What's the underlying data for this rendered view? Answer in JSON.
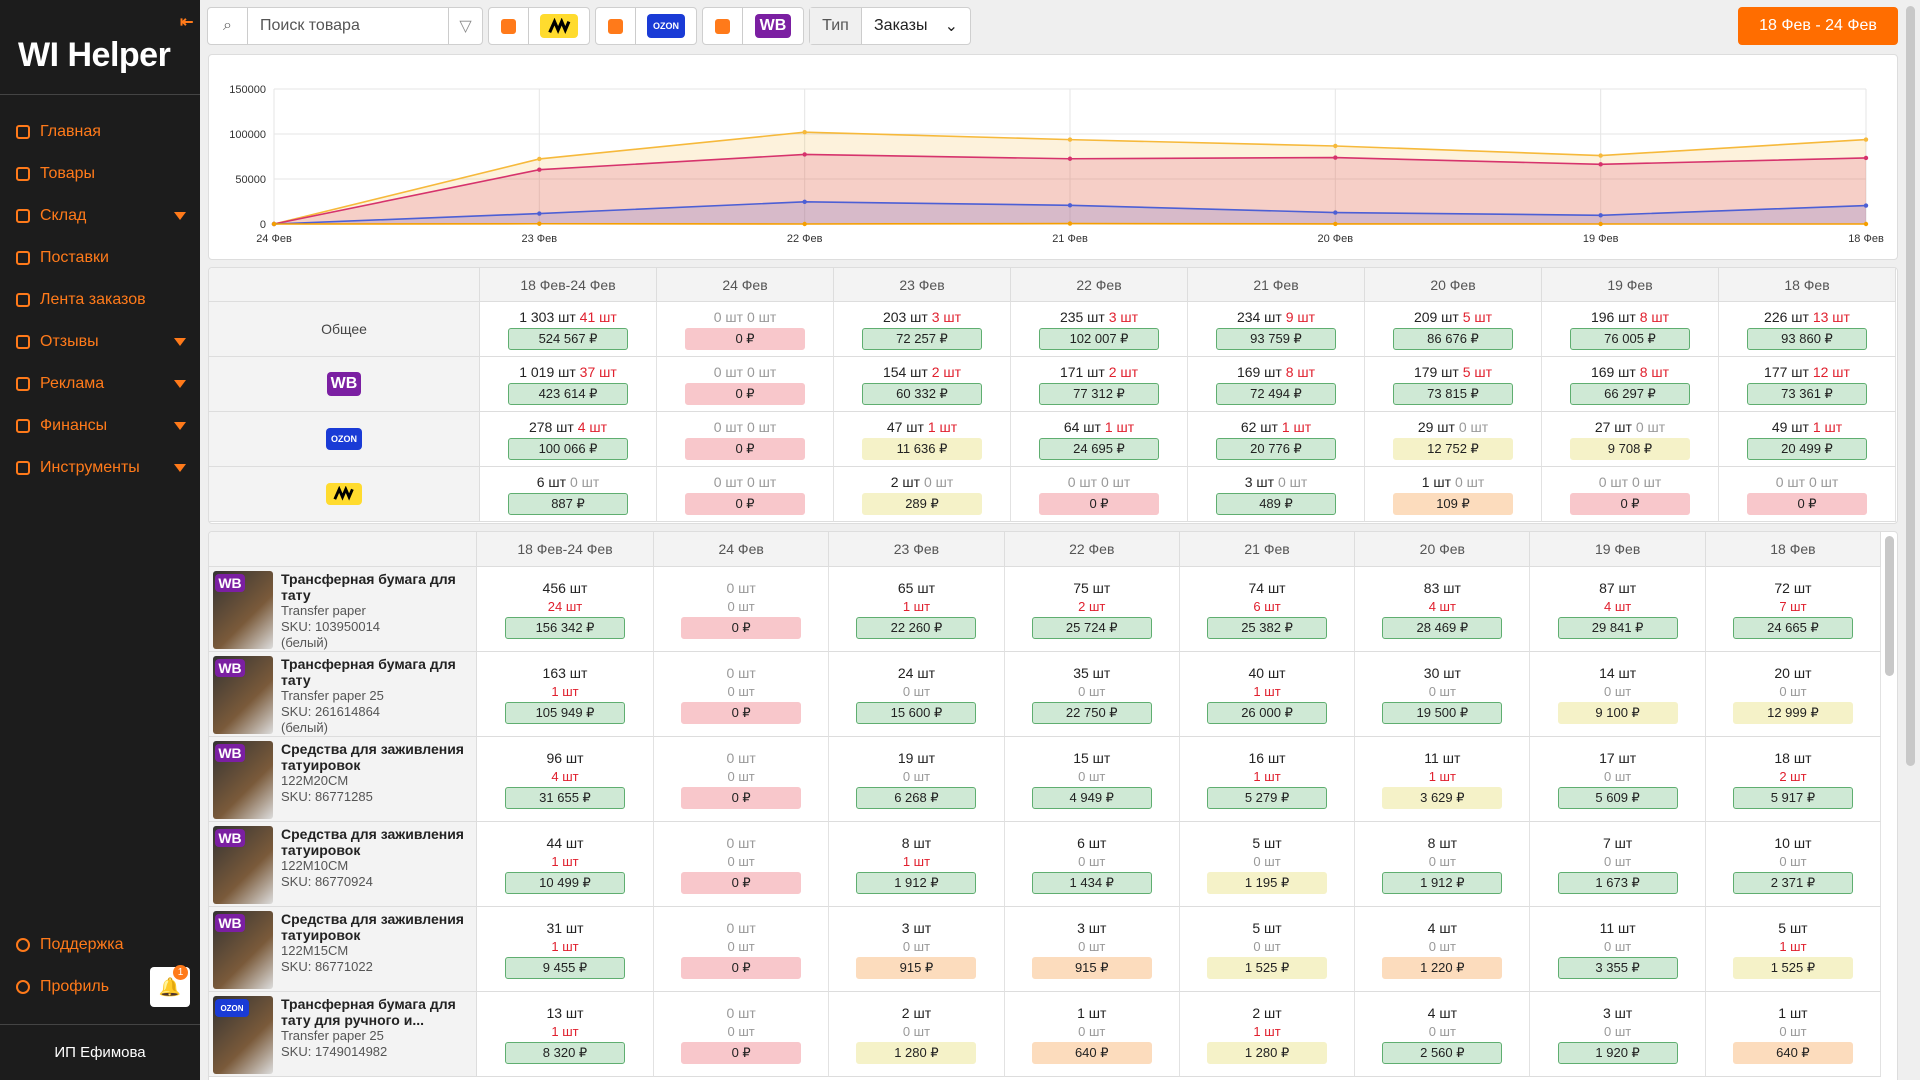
{
  "sidebar": {
    "logo": "WI Helper",
    "menu": [
      {
        "label": "Главная",
        "dropdown": false
      },
      {
        "label": "Товары",
        "dropdown": false
      },
      {
        "label": "Склад",
        "dropdown": true
      },
      {
        "label": "Поставки",
        "dropdown": false
      },
      {
        "label": "Лента заказов",
        "dropdown": false
      },
      {
        "label": "Отзывы",
        "dropdown": true
      },
      {
        "label": "Реклама",
        "dropdown": true
      },
      {
        "label": "Финансы",
        "dropdown": true
      },
      {
        "label": "Инструменты",
        "dropdown": true
      }
    ],
    "support": "Поддержка",
    "profile": "Профиль",
    "notifications": "1",
    "account": "ИП Ефимова"
  },
  "toolbar": {
    "search_placeholder": "Поиск товара",
    "marketplaces": [
      {
        "market": "ya",
        "checked": true
      },
      {
        "market": "ozon",
        "badge": "OZON",
        "checked": true
      },
      {
        "market": "wb",
        "badge": "WB",
        "checked": true
      }
    ],
    "type_label": "Тип",
    "type_value": "Заказы",
    "date_range": "18 Фев - 24 Фев"
  },
  "chart_data": {
    "type": "area",
    "categories": [
      "24 Фев",
      "23 Фев",
      "22 Фев",
      "21 Фев",
      "20 Фев",
      "19 Фев",
      "18 Фев"
    ],
    "series": [
      {
        "color": "#f6b93b",
        "values": [
          0,
          72257,
          102007,
          93759,
          86676,
          76005,
          93860
        ]
      },
      {
        "color": "#d6336c",
        "values": [
          0,
          60332,
          77312,
          72494,
          73815,
          66297,
          73361
        ]
      },
      {
        "color": "#4c5fd5",
        "values": [
          0,
          11636,
          24695,
          20776,
          12752,
          9708,
          20499
        ]
      },
      {
        "color": "#f59f00",
        "values": [
          0,
          289,
          0,
          489,
          109,
          0,
          0
        ]
      }
    ],
    "ylim": [
      0,
      150000
    ],
    "yticks": [
      0,
      50000,
      100000,
      150000
    ],
    "grid": true
  },
  "summary": {
    "headers": [
      "18 Фев-24 Фев",
      "24 Фев",
      "23 Фев",
      "22 Фев",
      "21 Фев",
      "20 Фев",
      "19 Фев",
      "18 Фев"
    ],
    "rows": [
      {
        "label": "Общее",
        "cells": [
          [
            "1 303 шт",
            "41 шт",
            "524 567 ₽",
            "g"
          ],
          [
            "0 шт",
            "0 шт",
            "0 ₽",
            "r"
          ],
          [
            "203 шт",
            "3 шт",
            "72 257 ₽",
            "g"
          ],
          [
            "235 шт",
            "3 шт",
            "102 007 ₽",
            "g"
          ],
          [
            "234 шт",
            "9 шт",
            "93 759 ₽",
            "g"
          ],
          [
            "209 шт",
            "5 шт",
            "86 676 ₽",
            "g"
          ],
          [
            "196 шт",
            "8 шт",
            "76 005 ₽",
            "g"
          ],
          [
            "226 шт",
            "13 шт",
            "93 860 ₽",
            "g"
          ]
        ]
      },
      {
        "market": "wb",
        "badge": "WB",
        "cells": [
          [
            "1 019 шт",
            "37 шт",
            "423 614 ₽",
            "g"
          ],
          [
            "0 шт",
            "0 шт",
            "0 ₽",
            "r"
          ],
          [
            "154 шт",
            "2 шт",
            "60 332 ₽",
            "g"
          ],
          [
            "171 шт",
            "2 шт",
            "77 312 ₽",
            "g"
          ],
          [
            "169 шт",
            "8 шт",
            "72 494 ₽",
            "g"
          ],
          [
            "179 шт",
            "5 шт",
            "73 815 ₽",
            "g"
          ],
          [
            "169 шт",
            "8 шт",
            "66 297 ₽",
            "g"
          ],
          [
            "177 шт",
            "12 шт",
            "73 361 ₽",
            "g"
          ]
        ]
      },
      {
        "market": "ozon",
        "badge": "OZON",
        "cells": [
          [
            "278 шт",
            "4 шт",
            "100 066 ₽",
            "g"
          ],
          [
            "0 шт",
            "0 шт",
            "0 ₽",
            "r"
          ],
          [
            "47 шт",
            "1 шт",
            "11 636 ₽",
            "y"
          ],
          [
            "64 шт",
            "1 шт",
            "24 695 ₽",
            "g"
          ],
          [
            "62 шт",
            "1 шт",
            "20 776 ₽",
            "g"
          ],
          [
            "29 шт",
            "0 шт",
            "12 752 ₽",
            "y"
          ],
          [
            "27 шт",
            "0 шт",
            "9 708 ₽",
            "y"
          ],
          [
            "49 шт",
            "1 шт",
            "20 499 ₽",
            "g"
          ]
        ]
      },
      {
        "market": "ya",
        "cells": [
          [
            "6 шт",
            "0 шт",
            "887 ₽",
            "g"
          ],
          [
            "0 шт",
            "0 шт",
            "0 ₽",
            "r"
          ],
          [
            "2 шт",
            "0 шт",
            "289 ₽",
            "y"
          ],
          [
            "0 шт",
            "0 шт",
            "0 ₽",
            "r"
          ],
          [
            "3 шт",
            "0 шт",
            "489 ₽",
            "g"
          ],
          [
            "1 шт",
            "0 шт",
            "109 ₽",
            "o"
          ],
          [
            "0 шт",
            "0 шт",
            "0 ₽",
            "r"
          ],
          [
            "0 шт",
            "0 шт",
            "0 ₽",
            "r"
          ]
        ]
      }
    ]
  },
  "products": {
    "headers": [
      "18 Фев-24 Фев",
      "24 Фев",
      "23 Фев",
      "22 Фев",
      "21 Фев",
      "20 Фев",
      "19 Фев",
      "18 Фев"
    ],
    "rows": [
      {
        "market": "wb",
        "badge": "WB",
        "name": "Трансферная бумага для тату",
        "variant": "Transfer paper",
        "sku": "SKU: 103950014",
        "color": "(белый)",
        "cells": [
          [
            "456 шт",
            "24 шт",
            "156 342 ₽",
            "g"
          ],
          [
            "0 шт",
            "0 шт",
            "0 ₽",
            "r"
          ],
          [
            "65 шт",
            "1 шт",
            "22 260 ₽",
            "g"
          ],
          [
            "75 шт",
            "2 шт",
            "25 724 ₽",
            "g"
          ],
          [
            "74 шт",
            "6 шт",
            "25 382 ₽",
            "g"
          ],
          [
            "83 шт",
            "4 шт",
            "28 469 ₽",
            "g"
          ],
          [
            "87 шт",
            "4 шт",
            "29 841 ₽",
            "g"
          ],
          [
            "72 шт",
            "7 шт",
            "24 665 ₽",
            "g"
          ]
        ]
      },
      {
        "market": "wb",
        "badge": "WB",
        "name": "Трансферная бумага для тату",
        "variant": "Transfer paper 25",
        "sku": "SKU: 261614864",
        "color": "(белый)",
        "cells": [
          [
            "163 шт",
            "1 шт",
            "105 949 ₽",
            "g"
          ],
          [
            "0 шт",
            "0 шт",
            "0 ₽",
            "r"
          ],
          [
            "24 шт",
            "0 шт",
            "15 600 ₽",
            "g"
          ],
          [
            "35 шт",
            "0 шт",
            "22 750 ₽",
            "g"
          ],
          [
            "40 шт",
            "1 шт",
            "26 000 ₽",
            "g"
          ],
          [
            "30 шт",
            "0 шт",
            "19 500 ₽",
            "g"
          ],
          [
            "14 шт",
            "0 шт",
            "9 100 ₽",
            "y"
          ],
          [
            "20 шт",
            "0 шт",
            "12 999 ₽",
            "y"
          ]
        ]
      },
      {
        "market": "wb",
        "badge": "WB",
        "name": "Средства для заживления татуировок",
        "variant": "122M20CM",
        "sku": "SKU: 86771285",
        "cells": [
          [
            "96 шт",
            "4 шт",
            "31 655 ₽",
            "g"
          ],
          [
            "0 шт",
            "0 шт",
            "0 ₽",
            "r"
          ],
          [
            "19 шт",
            "0 шт",
            "6 268 ₽",
            "g"
          ],
          [
            "15 шт",
            "0 шт",
            "4 949 ₽",
            "g"
          ],
          [
            "16 шт",
            "1 шт",
            "5 279 ₽",
            "g"
          ],
          [
            "11 шт",
            "1 шт",
            "3 629 ₽",
            "y"
          ],
          [
            "17 шт",
            "0 шт",
            "5 609 ₽",
            "g"
          ],
          [
            "18 шт",
            "2 шт",
            "5 917 ₽",
            "g"
          ]
        ]
      },
      {
        "market": "wb",
        "badge": "WB",
        "name": "Средства для заживления татуировок",
        "variant": "122M10CM",
        "sku": "SKU: 86770924",
        "cells": [
          [
            "44 шт",
            "1 шт",
            "10 499 ₽",
            "g"
          ],
          [
            "0 шт",
            "0 шт",
            "0 ₽",
            "r"
          ],
          [
            "8 шт",
            "1 шт",
            "1 912 ₽",
            "g"
          ],
          [
            "6 шт",
            "0 шт",
            "1 434 ₽",
            "g"
          ],
          [
            "5 шт",
            "0 шт",
            "1 195 ₽",
            "y"
          ],
          [
            "8 шт",
            "0 шт",
            "1 912 ₽",
            "g"
          ],
          [
            "7 шт",
            "0 шт",
            "1 673 ₽",
            "g"
          ],
          [
            "10 шт",
            "0 шт",
            "2 371 ₽",
            "g"
          ]
        ]
      },
      {
        "market": "wb",
        "badge": "WB",
        "name": "Средства для заживления татуировок",
        "variant": "122M15CM",
        "sku": "SKU: 86771022",
        "cells": [
          [
            "31 шт",
            "1 шт",
            "9 455 ₽",
            "g"
          ],
          [
            "0 шт",
            "0 шт",
            "0 ₽",
            "r"
          ],
          [
            "3 шт",
            "0 шт",
            "915 ₽",
            "o"
          ],
          [
            "3 шт",
            "0 шт",
            "915 ₽",
            "o"
          ],
          [
            "5 шт",
            "0 шт",
            "1 525 ₽",
            "y"
          ],
          [
            "4 шт",
            "0 шт",
            "1 220 ₽",
            "o"
          ],
          [
            "11 шт",
            "0 шт",
            "3 355 ₽",
            "g"
          ],
          [
            "5 шт",
            "1 шт",
            "1 525 ₽",
            "y"
          ]
        ]
      },
      {
        "market": "ozon",
        "badge": "OZON",
        "name": "Трансферная бумага для тату для ручного и...",
        "variant": "Transfer paper 25",
        "sku": "SKU: 1749014982",
        "cells": [
          [
            "13 шт",
            "1 шт",
            "8 320 ₽",
            "g"
          ],
          [
            "0 шт",
            "0 шт",
            "0 ₽",
            "r"
          ],
          [
            "2 шт",
            "0 шт",
            "1 280 ₽",
            "y"
          ],
          [
            "1 шт",
            "0 шт",
            "640 ₽",
            "o"
          ],
          [
            "2 шт",
            "1 шт",
            "1 280 ₽",
            "y"
          ],
          [
            "4 шт",
            "0 шт",
            "2 560 ₽",
            "g"
          ],
          [
            "3 шт",
            "0 шт",
            "1 920 ₽",
            "g"
          ],
          [
            "1 шт",
            "0 шт",
            "640 ₽",
            "o"
          ]
        ]
      }
    ]
  }
}
